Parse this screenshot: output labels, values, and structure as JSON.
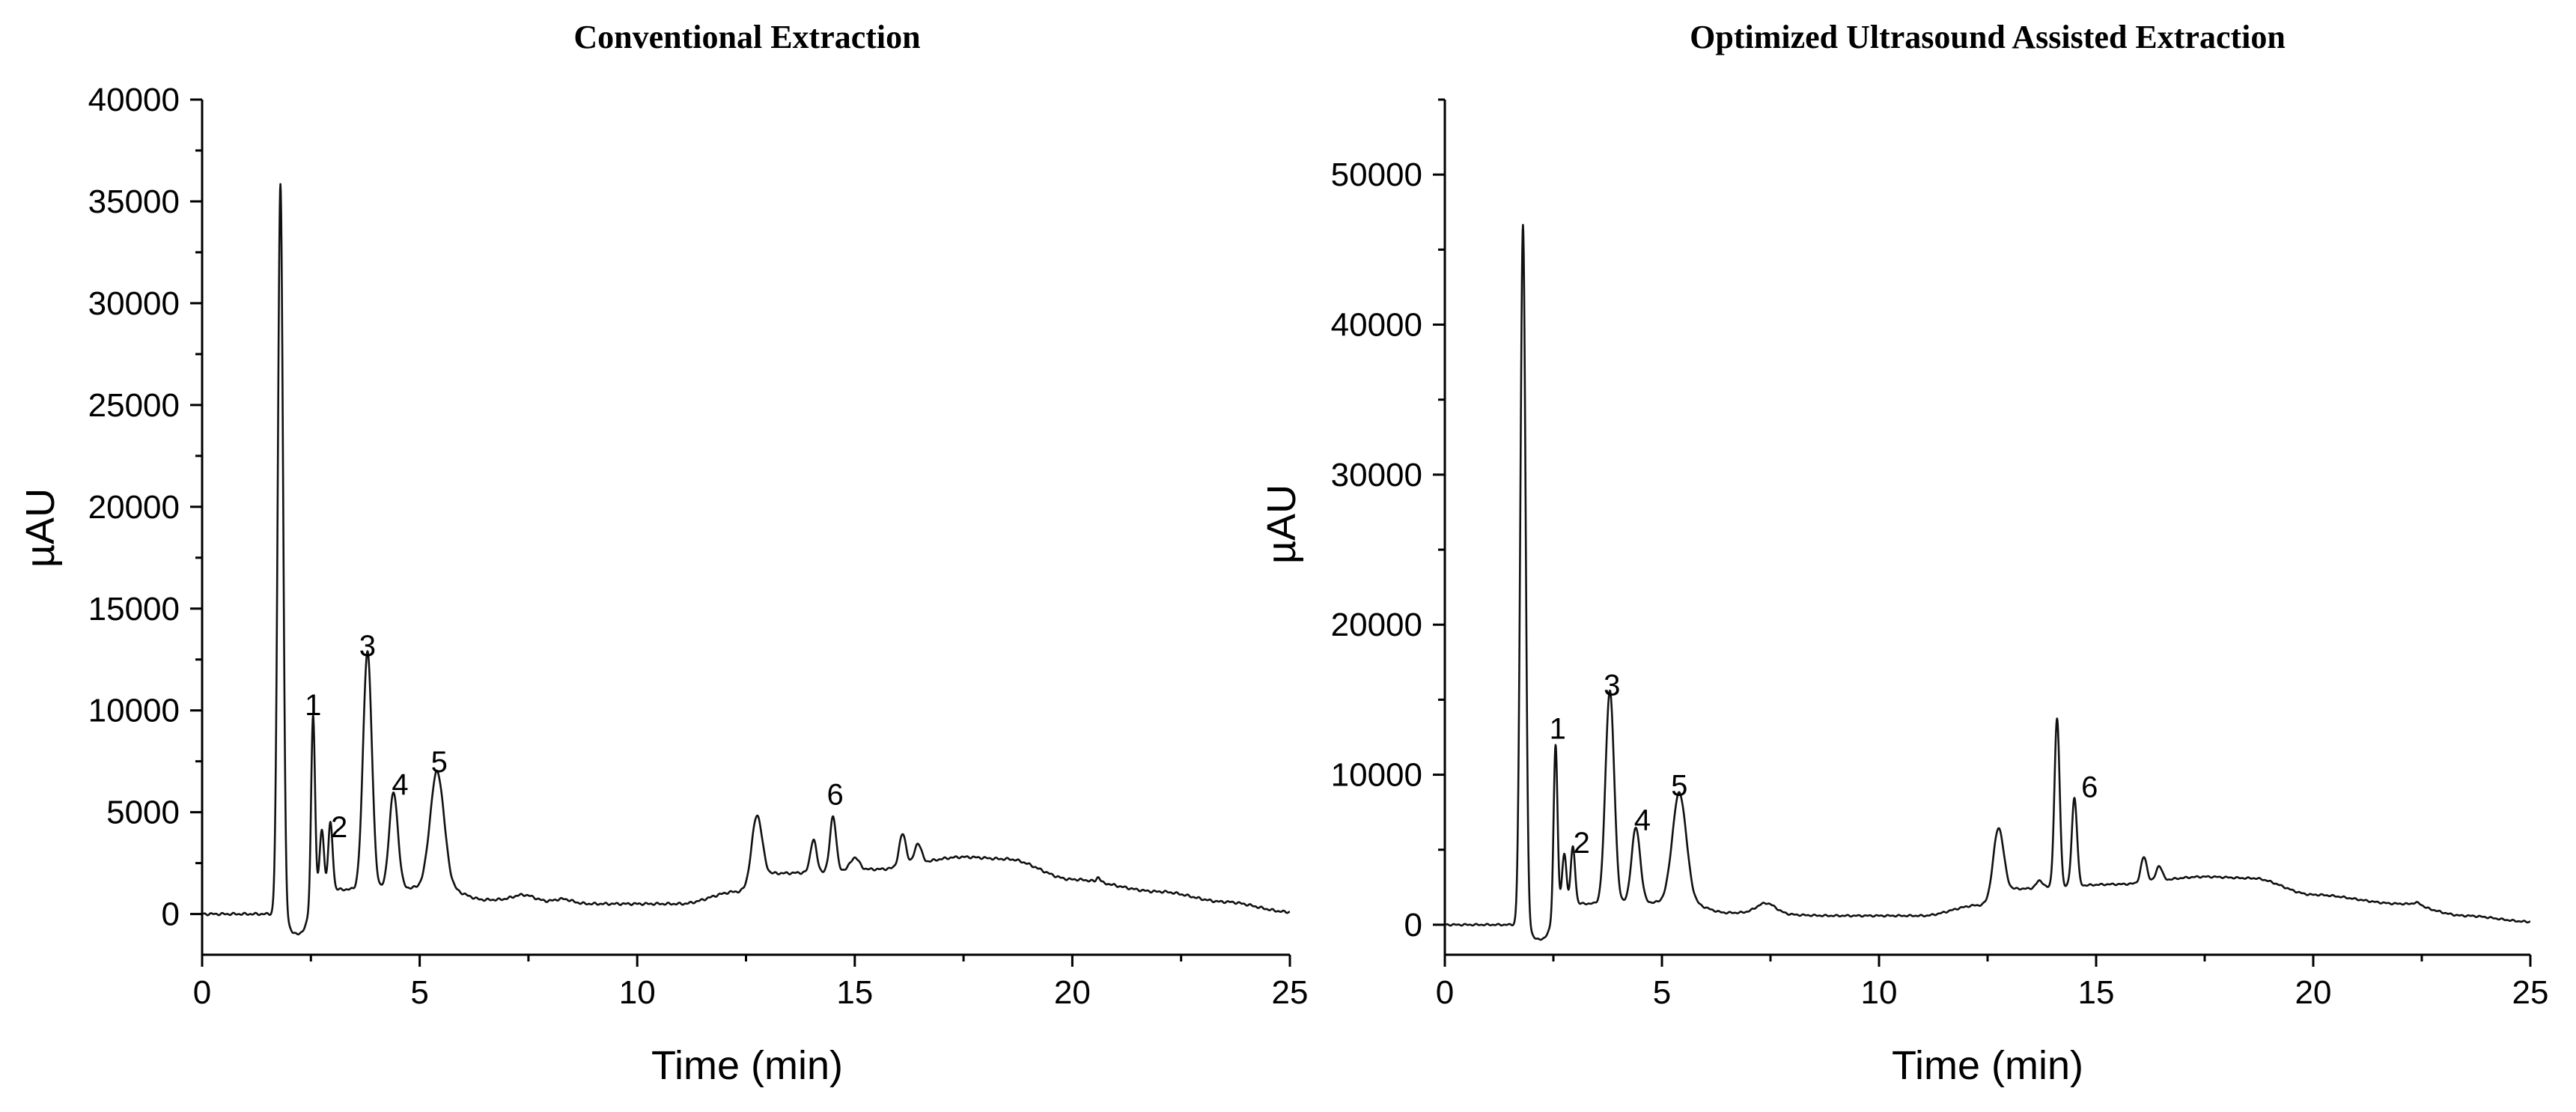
{
  "chart_data": [
    {
      "type": "line",
      "title": "Conventional Extraction",
      "xlabel": "Time (min)",
      "ylabel": "µAU",
      "xlim": [
        0,
        25
      ],
      "ylim": [
        -2000,
        40000
      ],
      "xticks": [
        0,
        5,
        10,
        15,
        20,
        25
      ],
      "yticks": [
        0,
        5000,
        10000,
        15000,
        20000,
        25000,
        30000,
        35000,
        40000
      ],
      "grid": false,
      "series": [
        {
          "name": "Conventional Extraction",
          "peaks": [
            [
              1.8,
              36000,
              0.06
            ],
            [
              2.55,
              9400,
              0.045
            ],
            [
              2.75,
              3000,
              0.05
            ],
            [
              2.95,
              3300,
              0.05
            ],
            [
              3.8,
              11700,
              0.1
            ],
            [
              4.4,
              4700,
              0.1
            ],
            [
              5.4,
              5700,
              0.16
            ],
            [
              7.4,
              300,
              0.25
            ],
            [
              8.3,
              200,
              0.2
            ],
            [
              12.75,
              3300,
              0.12
            ],
            [
              14.05,
              1600,
              0.07
            ],
            [
              14.5,
              2700,
              0.07
            ],
            [
              15.0,
              600,
              0.1
            ],
            [
              16.1,
              1600,
              0.08
            ],
            [
              16.45,
              1000,
              0.08
            ],
            [
              20.6,
              250,
              0.04
            ]
          ],
          "baseline": [
            [
              0,
              0
            ],
            [
              1.7,
              0
            ],
            [
              2.2,
              -1000
            ],
            [
              2.8,
              1200
            ],
            [
              5.5,
              1300
            ],
            [
              6.5,
              700
            ],
            [
              9,
              500
            ],
            [
              11,
              500
            ],
            [
              12.3,
              1100
            ],
            [
              13.2,
              2000
            ],
            [
              15.5,
              2200
            ],
            [
              17.5,
              2800
            ],
            [
              18.5,
              2700
            ],
            [
              20,
              1700
            ],
            [
              22,
              1100
            ],
            [
              23.5,
              600
            ],
            [
              25,
              100
            ]
          ]
        }
      ],
      "annotations": [
        {
          "text": "1",
          "x": 2.55,
          "y": 9400
        },
        {
          "text": "2",
          "x": 3.15,
          "y": 3400
        },
        {
          "text": "3",
          "x": 3.8,
          "y": 12300
        },
        {
          "text": "4",
          "x": 4.55,
          "y": 5500
        },
        {
          "text": "5",
          "x": 5.45,
          "y": 6600
        },
        {
          "text": "6",
          "x": 14.55,
          "y": 5000
        }
      ]
    },
    {
      "type": "line",
      "title": "Optimized Ultrasound Assisted Extraction",
      "xlabel": "Time (min)",
      "ylabel": "µAU",
      "xlim": [
        0,
        25
      ],
      "ylim": [
        -2000,
        55000
      ],
      "xticks": [
        0,
        5,
        10,
        15,
        20,
        25
      ],
      "yticks": [
        0,
        10000,
        20000,
        30000,
        40000,
        50000
      ],
      "grid": false,
      "series": [
        {
          "name": "Optimized Ultrasound Assisted Extraction",
          "peaks": [
            [
              1.8,
              46800,
              0.06
            ],
            [
              2.55,
              11500,
              0.045
            ],
            [
              2.75,
              3400,
              0.05
            ],
            [
              2.95,
              3800,
              0.05
            ],
            [
              3.8,
              14200,
              0.1
            ],
            [
              4.4,
              5000,
              0.1
            ],
            [
              5.4,
              7300,
              0.16
            ],
            [
              7.4,
              700,
              0.22
            ],
            [
              12.75,
              4600,
              0.12
            ],
            [
              13.7,
              500,
              0.08
            ],
            [
              14.1,
              11200,
              0.06
            ],
            [
              14.5,
              5900,
              0.06
            ],
            [
              16.1,
              1700,
              0.07
            ],
            [
              16.45,
              1000,
              0.07
            ],
            [
              22.4,
              200,
              0.1
            ]
          ],
          "baseline": [
            [
              0,
              0
            ],
            [
              1.7,
              0
            ],
            [
              2.2,
              -1000
            ],
            [
              2.8,
              1400
            ],
            [
              5.5,
              1500
            ],
            [
              6.5,
              800
            ],
            [
              9,
              600
            ],
            [
              11,
              600
            ],
            [
              12.3,
              1300
            ],
            [
              13.2,
              2400
            ],
            [
              15.5,
              2700
            ],
            [
              17.5,
              3200
            ],
            [
              18.6,
              3100
            ],
            [
              20,
              2000
            ],
            [
              22,
              1400
            ],
            [
              23.5,
              600
            ],
            [
              25,
              200
            ]
          ]
        }
      ],
      "annotations": [
        {
          "text": "1",
          "x": 2.6,
          "y": 11900
        },
        {
          "text": "2",
          "x": 3.15,
          "y": 4300
        },
        {
          "text": "3",
          "x": 3.85,
          "y": 14800
        },
        {
          "text": "4",
          "x": 4.55,
          "y": 5800
        },
        {
          "text": "5",
          "x": 5.4,
          "y": 8100
        },
        {
          "text": "6",
          "x": 14.85,
          "y": 8000
        }
      ]
    }
  ]
}
